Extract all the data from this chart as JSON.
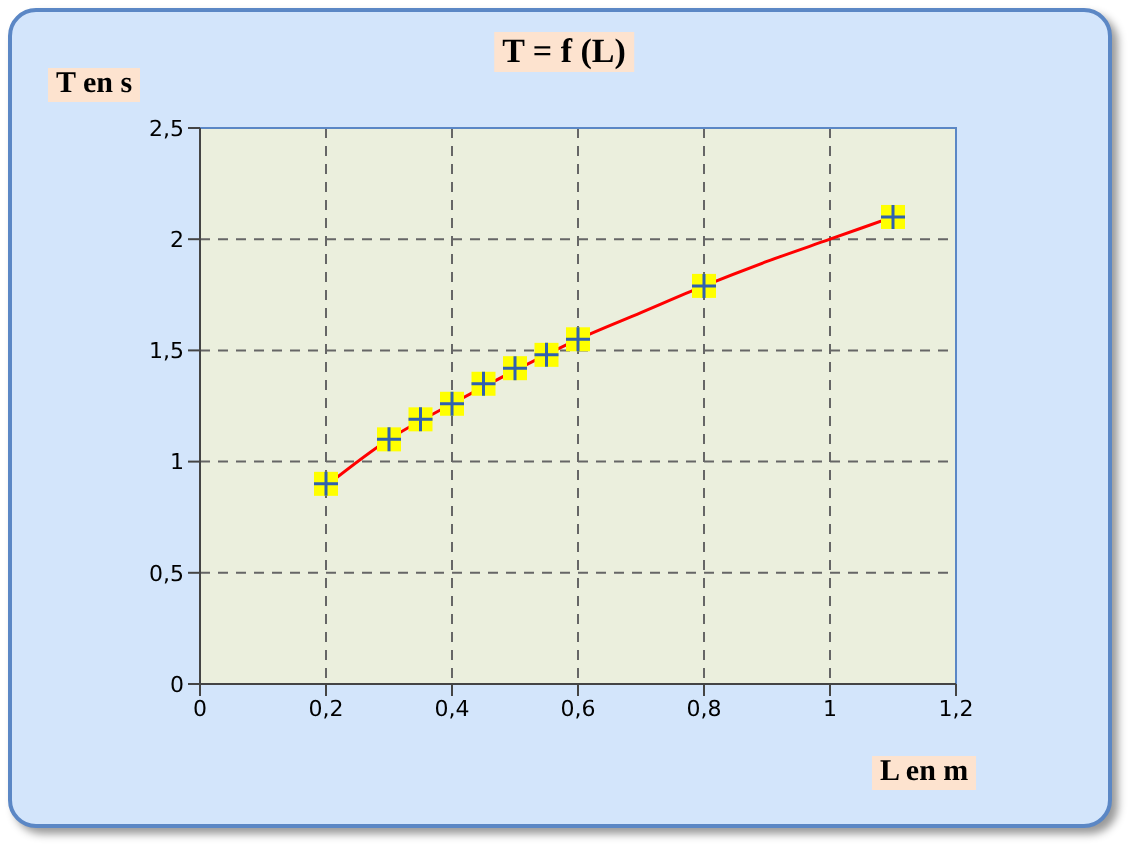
{
  "chart_data": {
    "type": "scatter",
    "title": "T = f (L)",
    "xlabel": "L en m",
    "ylabel": "T en s",
    "xlim": [
      0,
      1.2
    ],
    "xticks": [
      0,
      {
        "value": 0.2,
        "label": "0,2"
      },
      {
        "value": 0.4,
        "label": "0,4"
      },
      {
        "value": 0.6,
        "label": "0,6"
      },
      {
        "value": 0.8,
        "label": "0,8"
      },
      1,
      {
        "value": 1.2,
        "label": "1,2"
      }
    ],
    "ylim": [
      0,
      2.5
    ],
    "yticks": [
      0,
      {
        "value": 0.5,
        "label": "0,5"
      },
      1,
      {
        "value": 1.5,
        "label": "1,5"
      },
      2,
      {
        "value": 2.5,
        "label": "2,5"
      }
    ],
    "grid": true,
    "series": [
      {
        "type": "line",
        "color": "#ff0000",
        "line_style": "solid",
        "x": [
          0.2,
          0.3,
          0.4,
          0.5,
          0.6,
          0.7,
          0.8,
          0.9,
          1.0,
          1.1
        ],
        "values": [
          0.89,
          1.1,
          1.26,
          1.41,
          1.55,
          1.67,
          1.79,
          1.9,
          2.0,
          2.1
        ]
      },
      {
        "color": "#ffff00",
        "marker": "square",
        "x": [
          0.2,
          0.3,
          0.35,
          0.4,
          0.45,
          0.5,
          0.55,
          0.6,
          0.8,
          1.1
        ],
        "values": [
          0.9,
          1.1,
          1.19,
          1.26,
          1.35,
          1.42,
          1.48,
          1.55,
          1.79,
          2.1
        ]
      }
    ]
  }
}
